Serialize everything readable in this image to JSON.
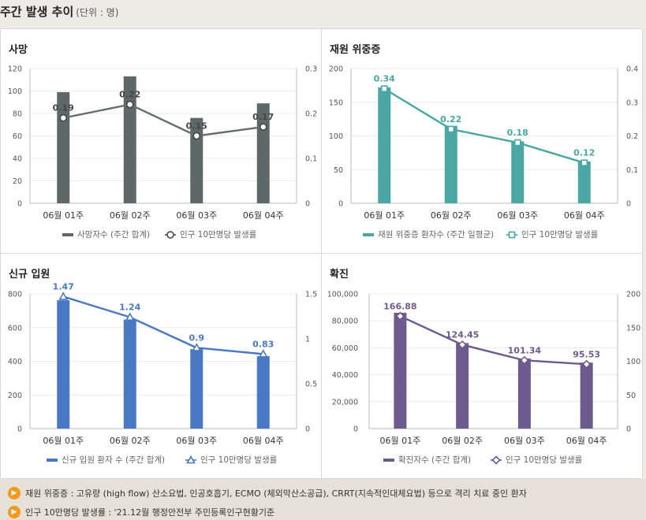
{
  "page": {
    "title": "주간 발생 추이",
    "unit": "(단위 : 명)"
  },
  "categories": [
    "06월 01주",
    "06월 02주",
    "06월 03주",
    "06월 04주"
  ],
  "chart_data": [
    {
      "type": "bar",
      "title": "사망",
      "categories": [
        "06월 01주",
        "06월 02주",
        "06월 03주",
        "06월 04주"
      ],
      "color": "#5e6868",
      "ylim_left": [
        0,
        120
      ],
      "left_ticks": [
        "0",
        "20",
        "40",
        "60",
        "80",
        "100",
        "120"
      ],
      "ylim_right": [
        0,
        0.3
      ],
      "right_ticks": [
        "0",
        "0.1",
        "0.2",
        "0.3"
      ],
      "series": [
        {
          "name": "사망자수 (주간 합계)",
          "kind": "bar",
          "axis": "left",
          "values": [
            99,
            113,
            76,
            89
          ]
        },
        {
          "name": "인구 10만명당 발생률",
          "kind": "line",
          "axis": "right",
          "marker": "circle",
          "values": [
            0.19,
            0.22,
            0.15,
            0.17
          ],
          "labels": [
            "0.19",
            "0.22",
            "0.15",
            "0.17"
          ]
        }
      ],
      "legend": [
        "사망자수 (주간 합계)",
        "인구 10만명당 발생률"
      ]
    },
    {
      "type": "bar",
      "title": "재원 위중증",
      "categories": [
        "06월 01주",
        "06월 02주",
        "06월 03주",
        "06월 04주"
      ],
      "color": "#4aa7a3",
      "ylim_left": [
        0,
        200
      ],
      "left_ticks": [
        "0",
        "50",
        "100",
        "150",
        "200"
      ],
      "ylim_right": [
        0,
        0.4
      ],
      "right_ticks": [
        "0",
        "0.1",
        "0.2",
        "0.3",
        "0.4"
      ],
      "series": [
        {
          "name": "재원 위중증 환자수 (주간 일평균)",
          "kind": "bar",
          "axis": "left",
          "values": [
            172,
            115,
            92,
            62
          ]
        },
        {
          "name": "인구 10만명당 발생률",
          "kind": "line",
          "axis": "right",
          "marker": "square",
          "values": [
            0.34,
            0.22,
            0.18,
            0.12
          ],
          "labels": [
            "0.34",
            "0.22",
            "0.18",
            "0.12"
          ]
        }
      ],
      "legend": [
        "재원 위중증 환자수 (주간 일평균)",
        "인구 10만명당 발생률"
      ]
    },
    {
      "type": "bar",
      "title": "신규 입원",
      "categories": [
        "06월 01주",
        "06월 02주",
        "06월 03주",
        "06월 04주"
      ],
      "color": "#4a78c2",
      "ylim_left": [
        0,
        800
      ],
      "left_ticks": [
        "0",
        "200",
        "400",
        "600",
        "800"
      ],
      "ylim_right": [
        0,
        1.5
      ],
      "right_ticks": [
        "0",
        "0.5",
        "1",
        "1.5"
      ],
      "series": [
        {
          "name": "신규 입원 환자 수 (주간 합계)",
          "kind": "bar",
          "axis": "left",
          "values": [
            762,
            648,
            472,
            430
          ]
        },
        {
          "name": "인구 10만명당 발생률",
          "kind": "line",
          "axis": "right",
          "marker": "triangle",
          "values": [
            1.47,
            1.24,
            0.9,
            0.83
          ],
          "labels": [
            "1.47",
            "1.24",
            "0.9",
            "0.83"
          ]
        }
      ],
      "legend": [
        "신규 입원 환자 수 (주간 합계)",
        "인구 10만명당 발생률"
      ]
    },
    {
      "type": "bar",
      "title": "확진",
      "categories": [
        "06월 01주",
        "06월 02주",
        "06월 03주",
        "06월 04주"
      ],
      "color": "#6e5a8e",
      "ylim_left": [
        0,
        100000
      ],
      "left_ticks": [
        "0",
        "20,000",
        "40,000",
        "60,000",
        "80,000",
        "100,000"
      ],
      "ylim_right": [
        0,
        200
      ],
      "right_ticks": [
        "0",
        "50",
        "100",
        "150",
        "200"
      ],
      "series": [
        {
          "name": "확진자수 (주간 합계)",
          "kind": "bar",
          "axis": "left",
          "values": [
            86000,
            63500,
            52000,
            49000
          ]
        },
        {
          "name": "인구 10만명당 발생률",
          "kind": "line",
          "axis": "right",
          "marker": "diamond",
          "values": [
            166.88,
            124.45,
            101.34,
            95.53
          ],
          "labels": [
            "166.88",
            "124.45",
            "101.34",
            "95.53"
          ]
        }
      ],
      "legend": [
        "확진자수 (주간 합계)",
        "인구 10만명당 발생률"
      ]
    }
  ],
  "notes": [
    "재원 위중증 : 고유량 (high flow) 산소요법, 인공호흡기, ECMO (체외막산소공급), CRRT(지속적인대체요법) 등으로 격리 치료 중인 환자",
    "인구 10만명당 발생률 : '21.12월 행정안전부 주민등록인구현황기준"
  ]
}
